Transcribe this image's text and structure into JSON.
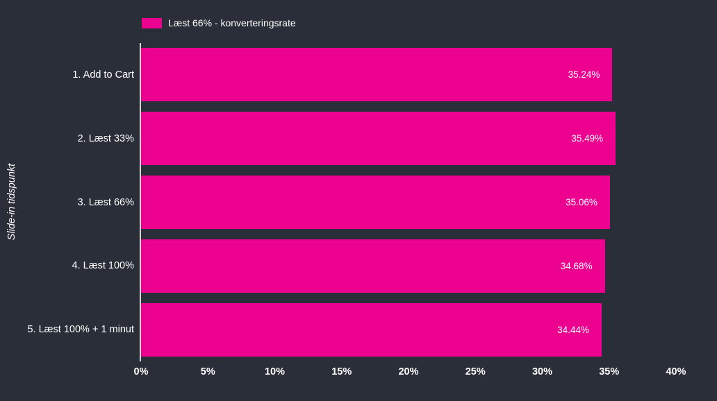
{
  "chart_data": {
    "type": "bar",
    "orientation": "horizontal",
    "legend": "Læst 66% - konverteringsrate",
    "ylabel": "Slide-in tidspunkt",
    "xlabel": "",
    "categories": [
      "1. Add to Cart",
      "2. Læst 33%",
      "3. Læst 66%",
      "4. Læst 100%",
      "5. Læst 100% + 1 minut"
    ],
    "values": [
      35.24,
      35.49,
      35.06,
      34.68,
      34.44
    ],
    "value_labels": [
      "35.24%",
      "35.49%",
      "35.06%",
      "34.68%",
      "34.44%"
    ],
    "xlim": [
      0,
      40
    ],
    "x_ticks": [
      0,
      5,
      10,
      15,
      20,
      25,
      30,
      35,
      40
    ],
    "x_tick_labels": [
      "0%",
      "5%",
      "10%",
      "15%",
      "20%",
      "25%",
      "30%",
      "35%",
      "40%"
    ],
    "grid": false,
    "legend_position": "top-left",
    "colors": {
      "background": "#2a2e38",
      "bar": "#ed0290",
      "text": "#ffffff",
      "axis_line": "#d9d9d9"
    }
  }
}
